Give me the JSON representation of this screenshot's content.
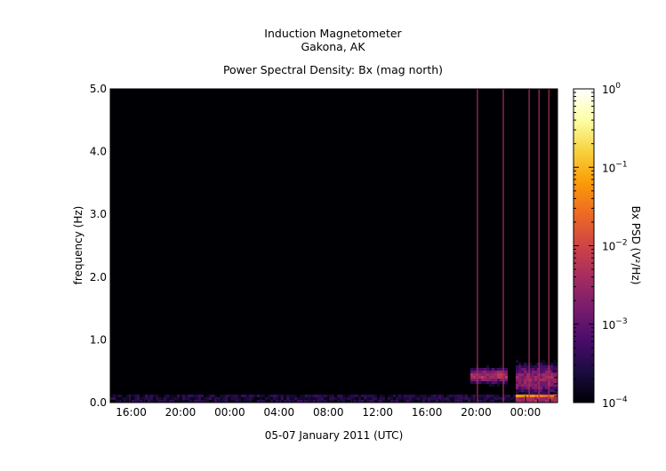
{
  "chart_data": {
    "type": "heatmap",
    "title": "Induction Magnetometer",
    "subtitle": "Gakona, AK",
    "plot_title": "Power Spectral Density: Bx (mag north)",
    "xlabel": "05-07 January 2011 (UTC)",
    "ylabel": "frequency (Hz)",
    "colorbar_label": "Bx PSD (V²/Hz)",
    "x_tick_labels": [
      "16:00",
      "20:00",
      "00:00",
      "04:00",
      "08:00",
      "12:00",
      "16:00",
      "20:00",
      "00:00"
    ],
    "x_tick_hours": [
      16,
      20,
      24,
      28,
      32,
      36,
      40,
      44,
      48
    ],
    "xlim_hours": [
      14.3,
      50.6
    ],
    "y_ticks": [
      0.0,
      1.0,
      2.0,
      3.0,
      4.0,
      5.0
    ],
    "y_tick_labels": [
      "0.0",
      "1.0",
      "2.0",
      "3.0",
      "4.0",
      "5.0"
    ],
    "ylim": [
      0,
      5
    ],
    "colorbar_scale": "log",
    "colorbar_range": [
      0.0001,
      1
    ],
    "colorbar_ticks": [
      {
        "base": "10",
        "exp": "0",
        "value": 1
      },
      {
        "base": "10",
        "exp": "−1",
        "value": 0.1
      },
      {
        "base": "10",
        "exp": "−2",
        "value": 0.01
      },
      {
        "base": "10",
        "exp": "−3",
        "value": 0.001
      },
      {
        "base": "10",
        "exp": "−4",
        "value": 0.0001
      }
    ],
    "colormap": [
      "#000004",
      "#1b0c41",
      "#4a0c6b",
      "#781c6d",
      "#a52c60",
      "#cf4446",
      "#ed6925",
      "#fb9b06",
      "#f7d13d",
      "#fcffa4",
      "#ffffff"
    ],
    "grid": false
  }
}
